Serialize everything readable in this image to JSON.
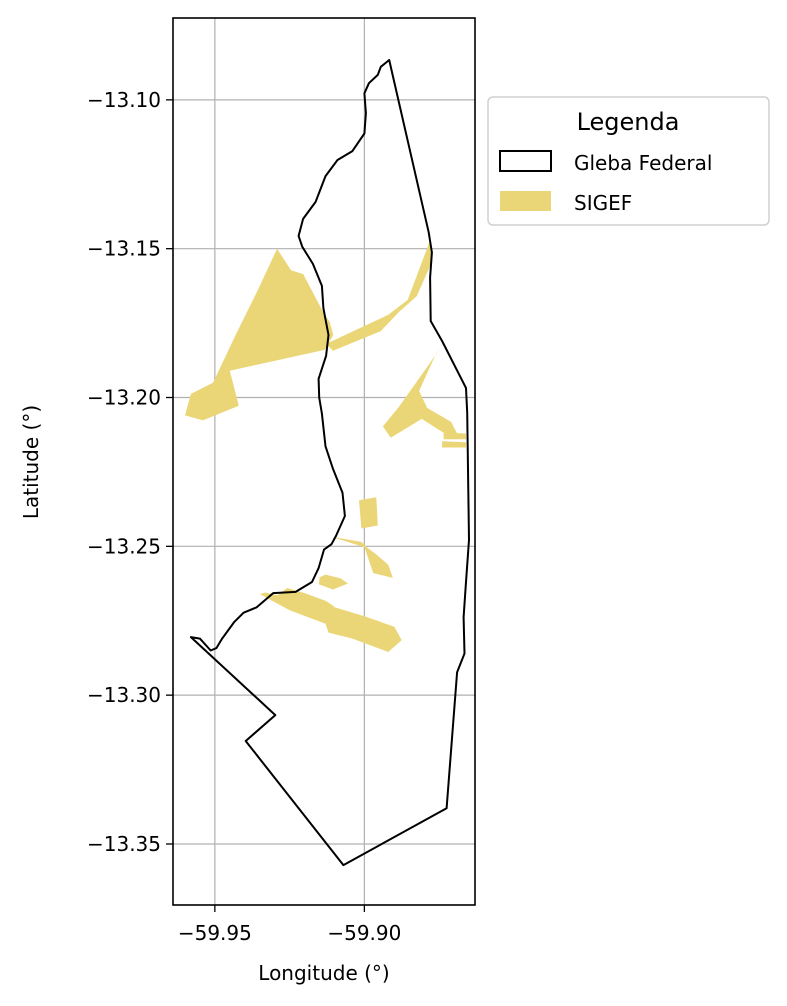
{
  "chart_data": {
    "type": "map",
    "xlabel": "Longitude (°)",
    "ylabel": "Latitude (°)",
    "xlim": [
      -59.964,
      -59.863
    ],
    "ylim": [
      -13.3705,
      -13.0725
    ],
    "grid": true,
    "x_ticks": [
      {
        "value": -59.95,
        "label": "−59.95"
      },
      {
        "value": -59.9,
        "label": "−59.90"
      }
    ],
    "y_ticks": [
      {
        "value": -13.1,
        "label": "−13.10"
      },
      {
        "value": -13.15,
        "label": "−13.15"
      },
      {
        "value": -13.2,
        "label": "−13.20"
      },
      {
        "value": -13.25,
        "label": "−13.25"
      },
      {
        "value": -13.3,
        "label": "−13.30"
      },
      {
        "value": -13.35,
        "label": "−13.35"
      }
    ],
    "legend": {
      "title": "Legenda",
      "placement": "outside-right-top",
      "entries": [
        {
          "label": "Gleba Federal",
          "style": "outline",
          "edge_color": "#000000",
          "fill": "none"
        },
        {
          "label": "SIGEF",
          "style": "fill",
          "fill": "#ebd677"
        }
      ]
    },
    "gleba_federal": {
      "name": "Gleba Federal",
      "edge_color": "#000000",
      "coords": [
        [
          -59.8917,
          -13.0866
        ],
        [
          -59.8945,
          -13.0889
        ],
        [
          -59.8955,
          -13.0916
        ],
        [
          -59.8985,
          -13.0944
        ],
        [
          -59.9,
          -13.0978
        ],
        [
          -59.8995,
          -13.1045
        ],
        [
          -59.9,
          -13.1113
        ],
        [
          -59.904,
          -13.1172
        ],
        [
          -59.909,
          -13.1202
        ],
        [
          -59.913,
          -13.1256
        ],
        [
          -59.9163,
          -13.1343
        ],
        [
          -59.9205,
          -13.14
        ],
        [
          -59.922,
          -13.1457
        ],
        [
          -59.9208,
          -13.1493
        ],
        [
          -59.9172,
          -13.1551
        ],
        [
          -59.9142,
          -13.1625
        ],
        [
          -59.9137,
          -13.17
        ],
        [
          -59.912,
          -13.179
        ],
        [
          -59.9128,
          -13.186
        ],
        [
          -59.9153,
          -13.1937
        ],
        [
          -59.9151,
          -13.2
        ],
        [
          -59.9142,
          -13.2054
        ],
        [
          -59.913,
          -13.2164
        ],
        [
          -59.9105,
          -13.224
        ],
        [
          -59.9073,
          -13.232
        ],
        [
          -59.9065,
          -13.2398
        ],
        [
          -59.9095,
          -13.2465
        ],
        [
          -59.911,
          -13.2493
        ],
        [
          -59.9135,
          -13.2511
        ],
        [
          -59.9153,
          -13.2573
        ],
        [
          -59.9175,
          -13.262
        ],
        [
          -59.923,
          -13.2653
        ],
        [
          -59.9305,
          -13.2657
        ],
        [
          -59.936,
          -13.2705
        ],
        [
          -59.9404,
          -13.2723
        ],
        [
          -59.9435,
          -13.2754
        ],
        [
          -59.9477,
          -13.2812
        ],
        [
          -59.9495,
          -13.2842
        ],
        [
          -59.9514,
          -13.285
        ],
        [
          -59.955,
          -13.281
        ],
        [
          -59.958,
          -13.2805
        ],
        [
          -59.9298,
          -13.3067
        ],
        [
          -59.9397,
          -13.3154
        ],
        [
          -59.907,
          -13.3571
        ],
        [
          -59.8725,
          -13.338
        ],
        [
          -59.869,
          -13.2923
        ],
        [
          -59.8665,
          -13.286
        ],
        [
          -59.8668,
          -13.2738
        ],
        [
          -59.866,
          -13.262
        ],
        [
          -59.865,
          -13.2478
        ],
        [
          -59.8656,
          -13.205
        ],
        [
          -59.866,
          -13.1968
        ],
        [
          -59.874,
          -13.181
        ],
        [
          -59.8778,
          -13.1743
        ],
        [
          -59.878,
          -13.1597
        ],
        [
          -59.8774,
          -13.1513
        ],
        [
          -59.8785,
          -13.1445
        ],
        [
          -59.8917,
          -13.0866
        ]
      ]
    },
    "sigef": {
      "name": "SIGEF",
      "fill": "#ebd677",
      "parcels": [
        [
          [
            -59.9292,
            -13.15
          ],
          [
            -59.9355,
            -13.1636
          ],
          [
            -59.9432,
            -13.1793
          ],
          [
            -59.9506,
            -13.195
          ],
          [
            -59.958,
            -13.1988
          ],
          [
            -59.96,
            -13.206
          ],
          [
            -59.954,
            -13.2077
          ],
          [
            -59.942,
            -13.2028
          ],
          [
            -59.945,
            -13.191
          ],
          [
            -59.9133,
            -13.184
          ],
          [
            -59.9104,
            -13.179
          ],
          [
            -59.9116,
            -13.1746
          ],
          [
            -59.9133,
            -13.1722
          ],
          [
            -59.9205,
            -13.1585
          ],
          [
            -59.9245,
            -13.1573
          ]
        ],
        [
          [
            -59.9128,
            -13.182
          ],
          [
            -59.892,
            -13.1722
          ],
          [
            -59.8855,
            -13.1672
          ],
          [
            -59.878,
            -13.1472
          ],
          [
            -59.8772,
            -13.154
          ],
          [
            -59.8825,
            -13.166
          ],
          [
            -59.8885,
            -13.1713
          ],
          [
            -59.8945,
            -13.1777
          ],
          [
            -59.9105,
            -13.1843
          ]
        ],
        [
          [
            -59.8785,
            -13.189
          ],
          [
            -59.8885,
            -13.2032
          ],
          [
            -59.8938,
            -13.2097
          ],
          [
            -59.8912,
            -13.2135
          ],
          [
            -59.8808,
            -13.2072
          ],
          [
            -59.8738,
            -13.2117
          ],
          [
            -59.8685,
            -13.2131
          ],
          [
            -59.871,
            -13.2082
          ],
          [
            -59.879,
            -13.2035
          ],
          [
            -59.8817,
            -13.1978
          ],
          [
            -59.876,
            -13.1852
          ],
          [
            -59.8745,
            -13.1832
          ]
        ],
        [
          [
            -59.8735,
            -13.2118
          ],
          [
            -59.866,
            -13.2121
          ],
          [
            -59.866,
            -13.214
          ],
          [
            -59.8735,
            -13.214
          ]
        ],
        [
          [
            -59.874,
            -13.2147
          ],
          [
            -59.866,
            -13.215
          ],
          [
            -59.866,
            -13.2168
          ],
          [
            -59.874,
            -13.2168
          ]
        ],
        [
          [
            -59.9018,
            -13.2345
          ],
          [
            -59.896,
            -13.2335
          ],
          [
            -59.8955,
            -13.243
          ],
          [
            -59.901,
            -13.244
          ]
        ],
        [
          [
            -59.911,
            -13.2468
          ],
          [
            -59.9,
            -13.2503
          ],
          [
            -59.897,
            -13.259
          ],
          [
            -59.8905,
            -13.2606
          ],
          [
            -59.892,
            -13.2562
          ],
          [
            -59.896,
            -13.2527
          ],
          [
            -59.899,
            -13.2505
          ],
          [
            -59.901,
            -13.2485
          ]
        ],
        [
          [
            -59.913,
            -13.2595
          ],
          [
            -59.908,
            -13.2607
          ],
          [
            -59.9055,
            -13.2625
          ],
          [
            -59.9105,
            -13.2645
          ],
          [
            -59.9152,
            -13.2628
          ],
          [
            -59.915,
            -13.2604
          ]
        ],
        [
          [
            -59.9258,
            -13.264
          ],
          [
            -59.92,
            -13.2657
          ],
          [
            -59.913,
            -13.2683
          ],
          [
            -59.91,
            -13.2702
          ],
          [
            -59.916,
            -13.272
          ],
          [
            -59.925,
            -13.2695
          ],
          [
            -59.93,
            -13.2672
          ]
        ],
        [
          [
            -59.935,
            -13.266
          ],
          [
            -59.925,
            -13.2715
          ],
          [
            -59.913,
            -13.276
          ],
          [
            -59.912,
            -13.279
          ],
          [
            -59.904,
            -13.281
          ],
          [
            -59.892,
            -13.2855
          ],
          [
            -59.8875,
            -13.2815
          ],
          [
            -59.89,
            -13.277
          ],
          [
            -59.9,
            -13.2735
          ],
          [
            -59.91,
            -13.2705
          ],
          [
            -59.923,
            -13.268
          ],
          [
            -59.933,
            -13.2655
          ]
        ]
      ]
    }
  }
}
